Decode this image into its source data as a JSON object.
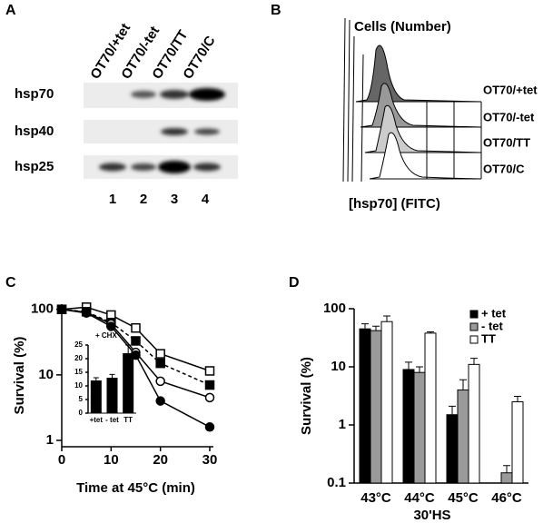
{
  "figure": {
    "panels": [
      "A",
      "B",
      "C",
      "D"
    ]
  },
  "blot": {
    "lanes": [
      "OT70/+tet",
      "OT70/-tet",
      "OT70/TT",
      "OT70/C"
    ],
    "lane_numbers": [
      "1",
      "2",
      "3",
      "4"
    ],
    "proteins": [
      "hsp70",
      "hsp40",
      "hsp25"
    ]
  },
  "flow": {
    "y_label": "Cells (Number)",
    "x_label": "[hsp70] (FITC)",
    "samples": [
      "OT70/+tet",
      "OT70/-tet",
      "OT70/TT",
      "OT70/C"
    ]
  },
  "chart_data": [
    {
      "type": "line",
      "x_label": "Time at 45°C (min)",
      "y_label": "Survival (%)",
      "log_y": true,
      "xlim": [
        0,
        30
      ],
      "ylim": [
        0.8,
        120
      ],
      "xticks": [
        0,
        10,
        20,
        30
      ],
      "yticks": [
        1,
        10,
        100
      ],
      "x": [
        0,
        5,
        10,
        15,
        20,
        30
      ],
      "series": [
        {
          "color": "#000000",
          "marker": "square-open",
          "values": [
            100,
            108,
            82,
            52,
            21,
            11.5
          ]
        },
        {
          "color": "#000000",
          "marker": "square-filled",
          "dash": true,
          "values": [
            100,
            92,
            63,
            33,
            15,
            7
          ]
        },
        {
          "color": "#000000",
          "marker": "circle-open",
          "values": [
            100,
            90,
            60,
            22,
            8,
            4.5
          ]
        },
        {
          "color": "#000000",
          "marker": "circle-filled",
          "values": [
            100,
            88,
            55,
            20,
            4,
            1.6
          ]
        }
      ]
    },
    {
      "type": "bar",
      "title": "+ CHX",
      "categories": [
        "+tet",
        "- tet",
        "TT"
      ],
      "values": [
        12,
        13,
        22
      ],
      "errors": [
        1,
        1.2,
        3
      ],
      "ylim": [
        0,
        25
      ],
      "yticks": [
        0,
        5,
        10,
        15,
        20,
        25
      ],
      "color": "#000000"
    },
    {
      "type": "grouped-bar",
      "x_label": "30'HS",
      "y_label": "Survival (%)",
      "log_y": true,
      "ylim": [
        0.1,
        100
      ],
      "yticks": [
        0.1,
        1,
        10,
        100
      ],
      "legend": "top-right",
      "categories": [
        "43°C",
        "44°C",
        "45°C",
        "46°C"
      ],
      "series": [
        {
          "name": "+ tet",
          "color": "#000000",
          "values": [
            45,
            9,
            1.5,
            null
          ],
          "errors": [
            10,
            3,
            0.6,
            null
          ]
        },
        {
          "name": "- tet",
          "color": "#9a9a9a",
          "values": [
            42,
            8,
            4,
            0.15
          ],
          "errors": [
            8,
            2,
            2,
            0.05
          ]
        },
        {
          "name": "TT",
          "color": "#ffffff",
          "values": [
            60,
            38,
            11,
            2.5
          ],
          "errors": [
            15,
            2,
            3,
            0.6
          ]
        }
      ]
    }
  ]
}
